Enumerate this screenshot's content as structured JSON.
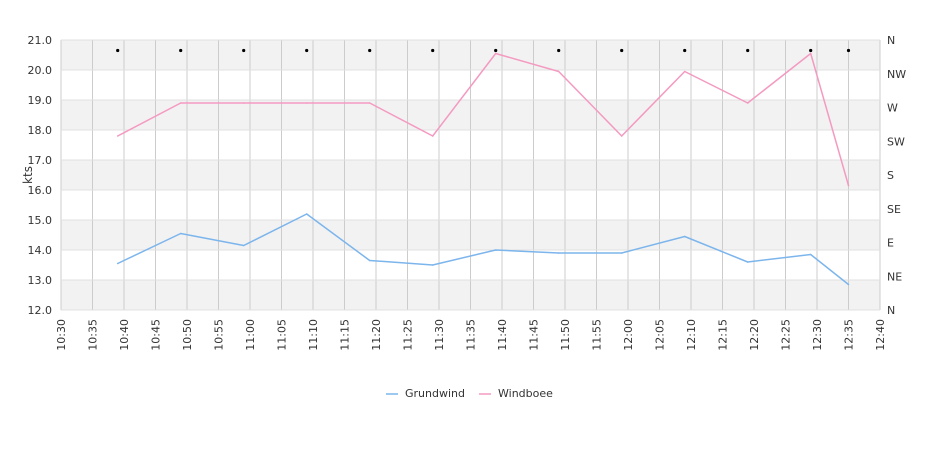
{
  "chart_data": {
    "type": "line",
    "title": "",
    "xlabel": "",
    "ylabel": "kts",
    "x_ticks": [
      "10:30",
      "10:35",
      "10:40",
      "10:45",
      "10:50",
      "10:55",
      "11:00",
      "11:05",
      "11:10",
      "11:15",
      "11:20",
      "11:25",
      "11:30",
      "11:35",
      "11:40",
      "11:45",
      "11:50",
      "11:55",
      "12:00",
      "12:05",
      "12:10",
      "12:15",
      "12:20",
      "12:25",
      "12:30",
      "12:35",
      "12:40"
    ],
    "xlim": [
      "10:30",
      "12:40"
    ],
    "ylim": [
      12.0,
      21.0
    ],
    "y_ticks": [
      "12.0",
      "13.0",
      "14.0",
      "15.0",
      "16.0",
      "17.0",
      "18.0",
      "19.0",
      "20.0",
      "21.0"
    ],
    "right_axis_labels": [
      "N",
      "NE",
      "E",
      "SE",
      "S",
      "SW",
      "W",
      "NW",
      "N"
    ],
    "grid": true,
    "legend_position": "bottom-center",
    "x": [
      "10:39",
      "10:49",
      "10:59",
      "11:09",
      "11:19",
      "11:29",
      "11:39",
      "11:49",
      "11:59",
      "12:09",
      "12:19",
      "12:29",
      "12:35"
    ],
    "series": [
      {
        "name": "Grundwind",
        "color": "#7cb5ec",
        "values": [
          13.55,
          14.55,
          14.15,
          15.2,
          13.65,
          13.5,
          14.0,
          13.9,
          13.9,
          14.45,
          13.6,
          13.85,
          12.85
        ]
      },
      {
        "name": "Windboee",
        "color": "#f49ac1",
        "values": [
          17.8,
          18.9,
          18.9,
          18.9,
          18.9,
          17.8,
          20.55,
          19.95,
          17.8,
          19.95,
          18.9,
          20.55,
          16.15
        ]
      }
    ],
    "direction_markers": {
      "x": [
        "10:39",
        "10:49",
        "10:59",
        "11:09",
        "11:19",
        "11:29",
        "11:39",
        "11:49",
        "11:59",
        "12:09",
        "12:19",
        "12:29",
        "12:35"
      ],
      "values": [
        20.65,
        20.65,
        20.65,
        20.65,
        20.65,
        20.65,
        20.65,
        20.65,
        20.65,
        20.65,
        20.65,
        20.65,
        20.65
      ]
    }
  }
}
